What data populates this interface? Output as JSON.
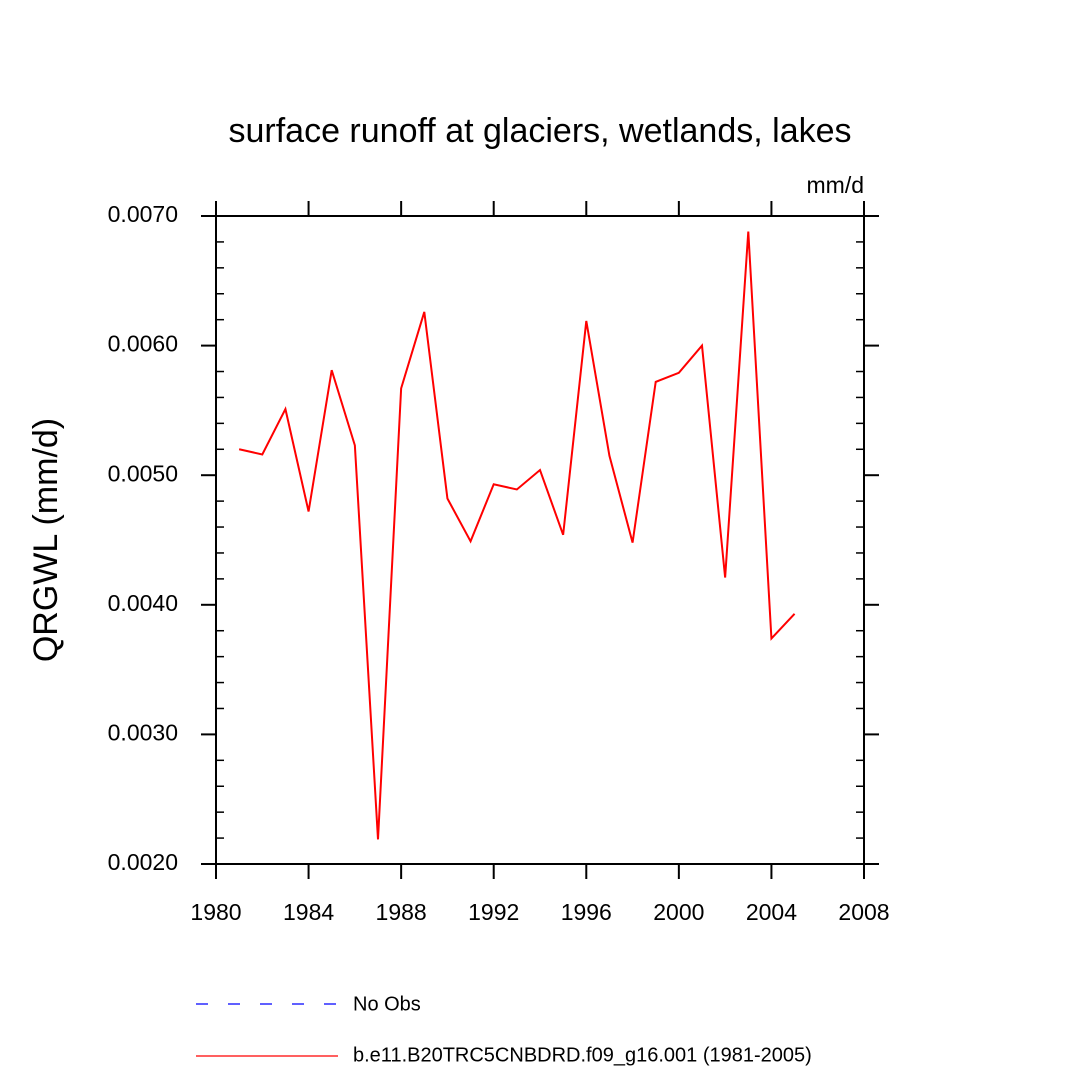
{
  "chart_data": {
    "type": "line",
    "title": "surface runoff at glaciers, wetlands, lakes",
    "units": "mm/d",
    "y_label": "QRGWL  (mm/d)",
    "x": [
      1981,
      1982,
      1983,
      1984,
      1985,
      1986,
      1987,
      1988,
      1989,
      1990,
      1991,
      1992,
      1993,
      1994,
      1995,
      1996,
      1997,
      1998,
      1999,
      2000,
      2001,
      2002,
      2003,
      2004,
      2005
    ],
    "series": [
      {
        "name": "b.e11.B20TRC5CNBDRD.f09_g16.001 (1981-2005)",
        "color": "#ff0000",
        "values": [
          0.0052,
          0.00516,
          0.00551,
          0.00472,
          0.00581,
          0.00523,
          0.00219,
          0.00567,
          0.00626,
          0.00482,
          0.00449,
          0.00493,
          0.00489,
          0.00504,
          0.00454,
          0.00619,
          0.00515,
          0.00448,
          0.00572,
          0.00579,
          0.006,
          0.00421,
          0.00688,
          0.00374,
          0.00393
        ]
      }
    ],
    "reference": {
      "name": "No Obs",
      "color": "#0000ff",
      "style": "dashed"
    },
    "xlim": [
      1980,
      2008
    ],
    "xticks": [
      1980,
      1984,
      1988,
      1992,
      1996,
      2000,
      2004,
      2008
    ],
    "ylim": [
      0.002,
      0.007
    ],
    "yticks": [
      {
        "value": 0.002,
        "label": "0.0020"
      },
      {
        "value": 0.003,
        "label": "0.0030"
      },
      {
        "value": 0.004,
        "label": "0.0040"
      },
      {
        "value": 0.005,
        "label": "0.0050"
      },
      {
        "value": 0.006,
        "label": "0.0060"
      },
      {
        "value": 0.007,
        "label": "0.0070"
      }
    ]
  }
}
